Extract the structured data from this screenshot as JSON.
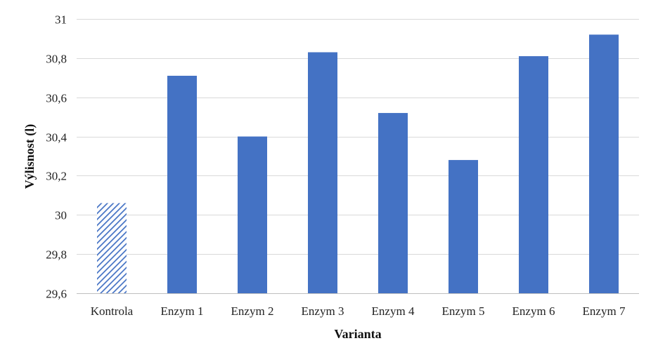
{
  "chart_data": {
    "type": "bar",
    "title": "",
    "xlabel": "Varianta",
    "ylabel": "Výlisnost (l)",
    "categories": [
      "Kontrola",
      "Enzym 1",
      "Enzym 2",
      "Enzym 3",
      "Enzym 4",
      "Enzym 5",
      "Enzym 6",
      "Enzym 7"
    ],
    "values": [
      30.06,
      30.71,
      30.4,
      30.83,
      30.52,
      30.28,
      30.81,
      30.92
    ],
    "ylim": [
      29.6,
      31
    ],
    "yticks": [
      29.6,
      29.8,
      30,
      30.2,
      30.4,
      30.6,
      30.8,
      31
    ],
    "ytick_labels": [
      "29,6",
      "29,8",
      "30",
      "30,2",
      "30,4",
      "30,6",
      "30,8",
      "31"
    ],
    "grid": true,
    "legend": "none",
    "bar_color": "#4472c4",
    "control_pattern": "diagonal-hatch",
    "control_color": "#4472c4",
    "grid_color": "#d9d9d9"
  }
}
